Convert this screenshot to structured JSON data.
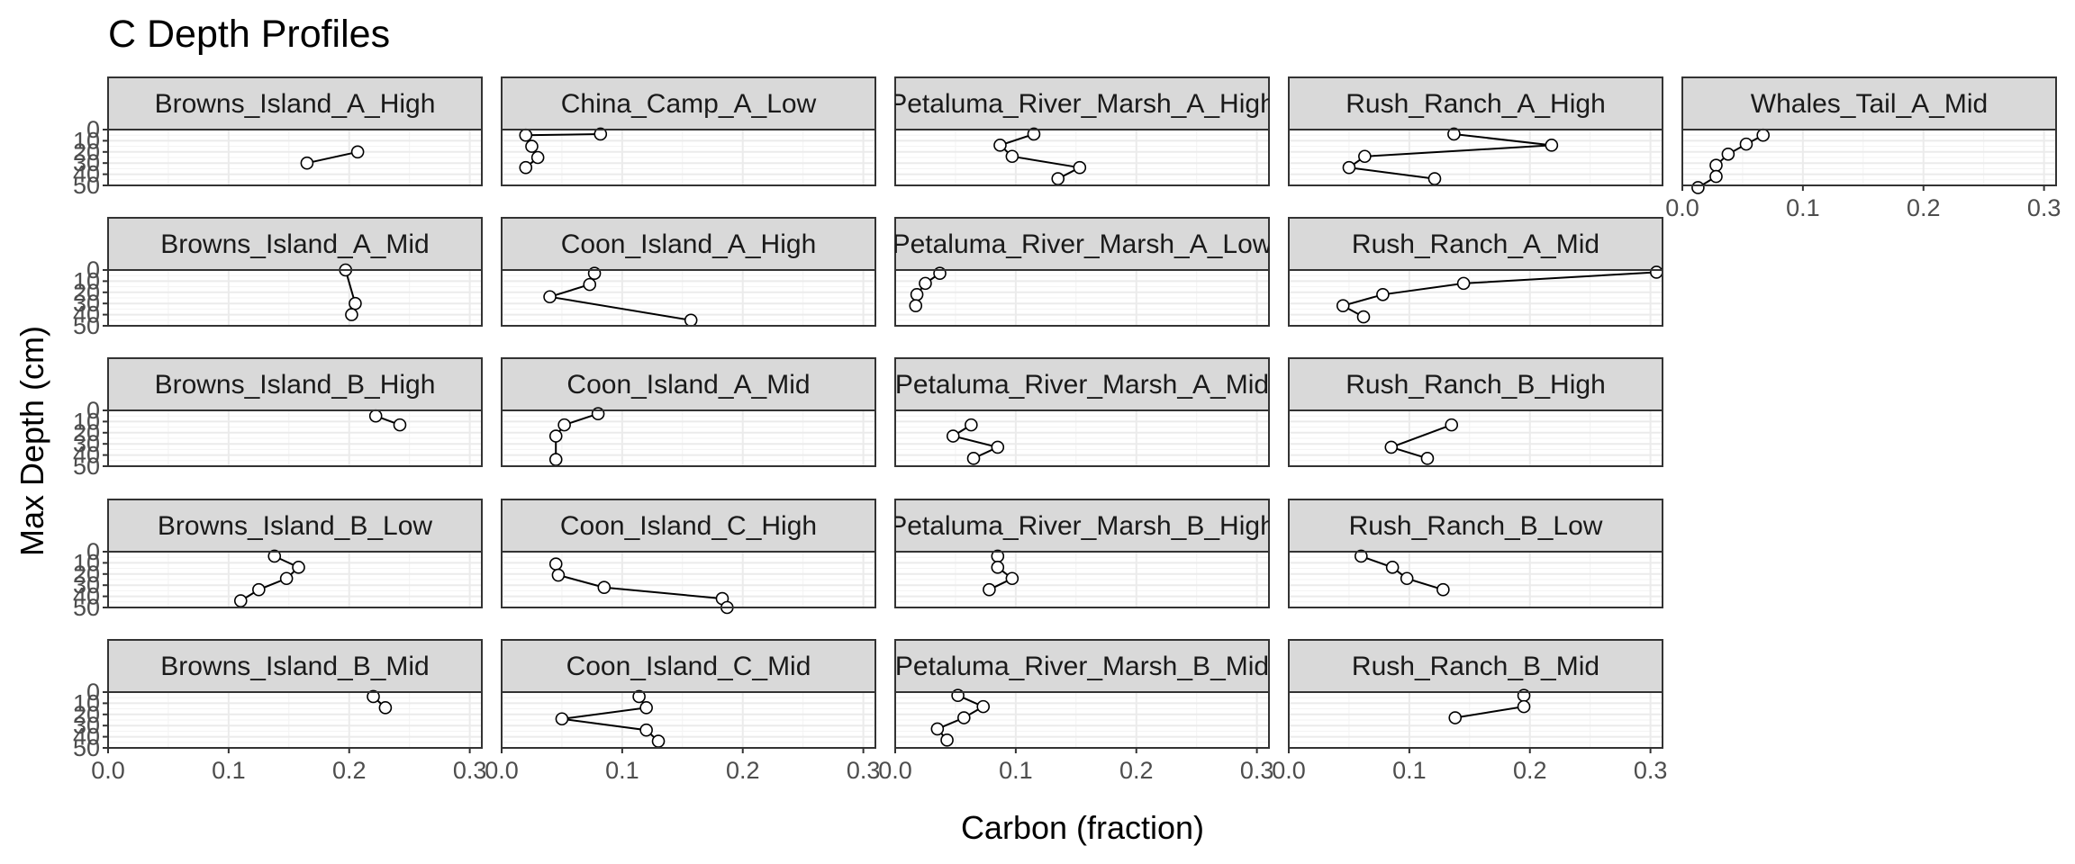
{
  "chart_data": {
    "type": "line",
    "title": "C Depth Profiles",
    "xlabel": "Carbon (fraction)",
    "ylabel": "Max Depth (cm)",
    "xlim": [
      0,
      0.31
    ],
    "ylim": [
      50,
      0
    ],
    "y_reversed": true,
    "x_ticks": [
      0.0,
      0.1,
      0.2,
      0.3
    ],
    "x_tick_labels": [
      "0.0",
      "0.1",
      "0.2",
      "0.3"
    ],
    "y_ticks": [
      0,
      10,
      20,
      30,
      40,
      50
    ],
    "y_tick_labels": [
      "0",
      "10",
      "20",
      "30",
      "40",
      "50"
    ],
    "grid": true,
    "facet_layout": "wrap, 5 rows by column",
    "marker": "open circle",
    "colors": {
      "line": "#000000",
      "marker_fill": "#ffffff",
      "strip_bg": "#d9d9d9",
      "panel_border": "#333333",
      "grid": "#ebebeb"
    },
    "panels": [
      {
        "name": "Browns_Island_A_High",
        "x": [
          0.207,
          0.165
        ],
        "y": [
          20,
          30
        ]
      },
      {
        "name": "Browns_Island_A_Mid",
        "x": [
          0.197,
          0.205,
          0.202
        ],
        "y": [
          0,
          30,
          40
        ]
      },
      {
        "name": "Browns_Island_B_High",
        "x": [
          0.222,
          0.242
        ],
        "y": [
          5,
          13
        ]
      },
      {
        "name": "Browns_Island_B_Low",
        "x": [
          0.138,
          0.158,
          0.148,
          0.125,
          0.11
        ],
        "y": [
          4,
          14,
          24,
          34,
          44
        ]
      },
      {
        "name": "Browns_Island_B_Mid",
        "x": [
          0.22,
          0.23
        ],
        "y": [
          4,
          14
        ]
      },
      {
        "name": "China_Camp_A_Low",
        "x": [
          0.082,
          0.02,
          0.025,
          0.03,
          0.02
        ],
        "y": [
          4,
          5,
          15,
          25,
          34
        ]
      },
      {
        "name": "Coon_Island_A_High",
        "x": [
          0.077,
          0.073,
          0.04,
          0.157
        ],
        "y": [
          3,
          13,
          24,
          45
        ]
      },
      {
        "name": "Coon_Island_A_Mid",
        "x": [
          0.08,
          0.052,
          0.045,
          0.045
        ],
        "y": [
          3,
          13,
          23,
          44
        ]
      },
      {
        "name": "Coon_Island_C_High",
        "x": [
          0.045,
          0.047,
          0.085,
          0.183,
          0.187
        ],
        "y": [
          11,
          21,
          32,
          42,
          50
        ]
      },
      {
        "name": "Coon_Island_C_Mid",
        "x": [
          0.114,
          0.12,
          0.05,
          0.12,
          0.13
        ],
        "y": [
          4,
          14,
          24,
          34,
          44
        ]
      },
      {
        "name": "Petaluma_River_Marsh_A_High",
        "x": [
          0.115,
          0.087,
          0.097,
          0.153,
          0.135
        ],
        "y": [
          4,
          14,
          24,
          34,
          44
        ]
      },
      {
        "name": "Petaluma_River_Marsh_A_Low",
        "x": [
          0.037,
          0.025,
          0.018,
          0.017
        ],
        "y": [
          3,
          12,
          22,
          32
        ]
      },
      {
        "name": "Petaluma_River_Marsh_A_Mid",
        "x": [
          0.063,
          0.048,
          0.085,
          0.065
        ],
        "y": [
          13,
          23,
          33,
          43
        ]
      },
      {
        "name": "Petaluma_River_Marsh_B_High",
        "x": [
          0.085,
          0.085,
          0.097,
          0.078
        ],
        "y": [
          4,
          14,
          24,
          34
        ]
      },
      {
        "name": "Petaluma_River_Marsh_B_Mid",
        "x": [
          0.052,
          0.073,
          0.057,
          0.035,
          0.043
        ],
        "y": [
          3,
          13,
          23,
          33,
          43
        ]
      },
      {
        "name": "Rush_Ranch_A_High",
        "x": [
          0.137,
          0.218,
          0.063,
          0.05,
          0.121
        ],
        "y": [
          4,
          14,
          24,
          34,
          44
        ]
      },
      {
        "name": "Rush_Ranch_A_Mid",
        "x": [
          0.305,
          0.145,
          0.078,
          0.045,
          0.062
        ],
        "y": [
          2,
          12,
          22,
          32,
          42
        ]
      },
      {
        "name": "Rush_Ranch_B_High",
        "x": [
          0.135,
          0.085,
          0.115
        ],
        "y": [
          13,
          33,
          43
        ]
      },
      {
        "name": "Rush_Ranch_B_Low",
        "x": [
          0.06,
          0.086,
          0.098,
          0.128
        ],
        "y": [
          4,
          14,
          24,
          34
        ]
      },
      {
        "name": "Rush_Ranch_B_Mid",
        "x": [
          0.195,
          0.195,
          0.138
        ],
        "y": [
          3,
          13,
          23
        ]
      },
      {
        "name": "Whales_Tail_A_Mid",
        "x": [
          0.067,
          0.053,
          0.038,
          0.028,
          0.028,
          0.013
        ],
        "y": [
          5,
          13,
          22,
          32,
          42,
          52
        ]
      }
    ]
  }
}
